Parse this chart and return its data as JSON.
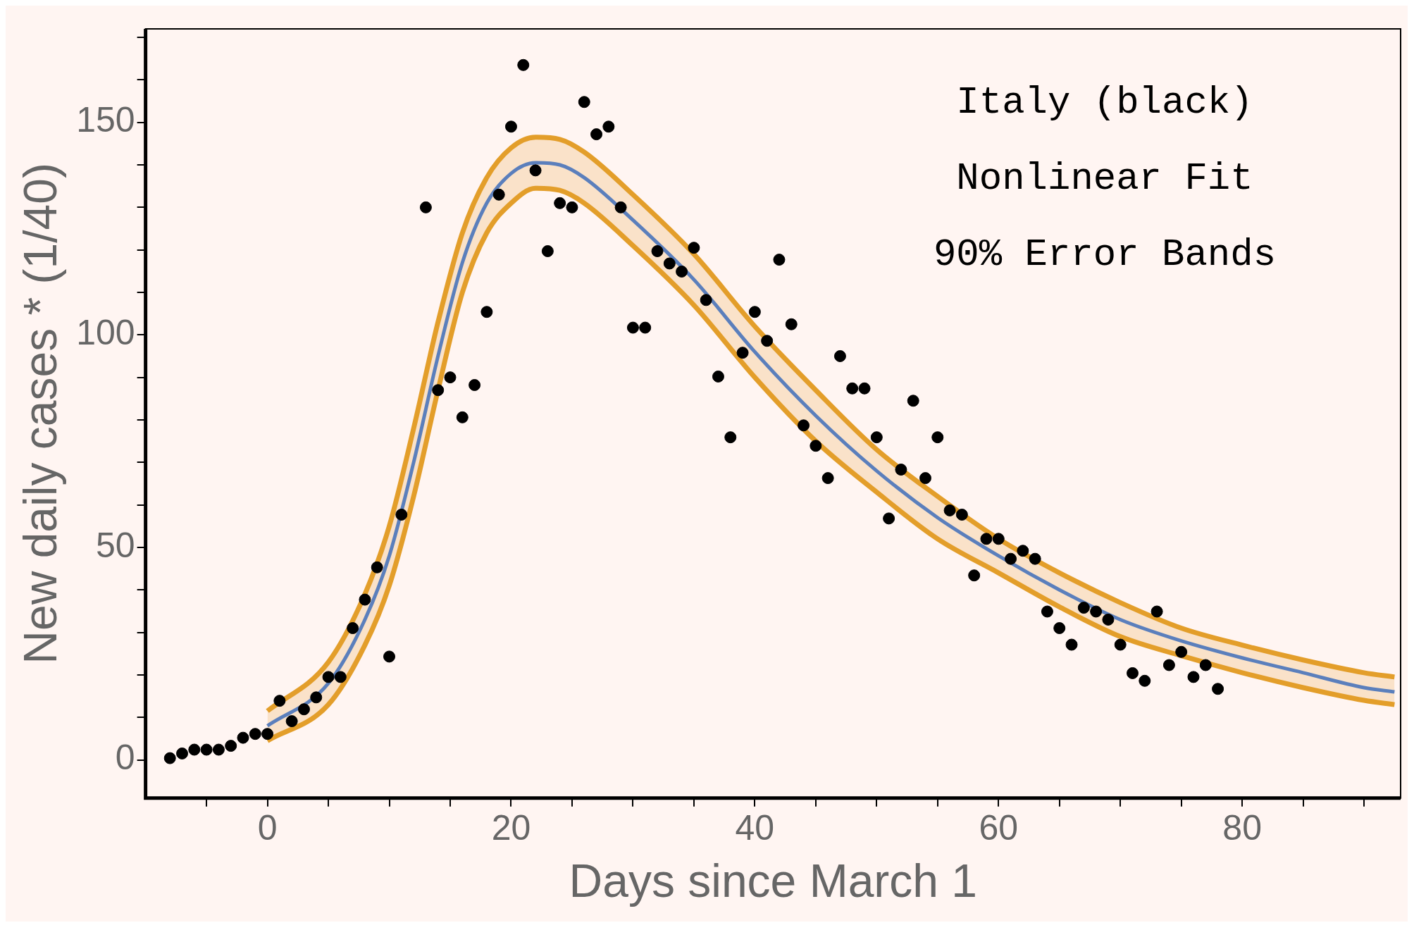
{
  "chart_data": {
    "type": "scatter",
    "xlabel": "Days since March 1",
    "ylabel": "New daily cases * (1/40)",
    "annotations": [
      "Italy (black)",
      "Nonlinear Fit",
      "90% Error Bands"
    ],
    "xlim": [
      -10,
      93
    ],
    "ylim": [
      -9,
      172
    ],
    "xticks": [
      {
        "value": -5,
        "label": null
      },
      0,
      {
        "value": 5,
        "label": null
      },
      {
        "value": 10,
        "label": null
      },
      {
        "value": 15,
        "label": null
      },
      20,
      {
        "value": 25,
        "label": null
      },
      {
        "value": 30,
        "label": null
      },
      {
        "value": 35,
        "label": null
      },
      40,
      {
        "value": 45,
        "label": null
      },
      {
        "value": 50,
        "label": null
      },
      {
        "value": 55,
        "label": null
      },
      60,
      {
        "value": 65,
        "label": null
      },
      {
        "value": 70,
        "label": null
      },
      {
        "value": 75,
        "label": null
      },
      80,
      {
        "value": 85,
        "label": null
      },
      {
        "value": 90,
        "label": null
      }
    ],
    "yticks": [
      0,
      {
        "value": 10,
        "label": null
      },
      {
        "value": 20,
        "label": null
      },
      {
        "value": 30,
        "label": null
      },
      {
        "value": 40,
        "label": null
      },
      50,
      {
        "value": 60,
        "label": null
      },
      {
        "value": 70,
        "label": null
      },
      {
        "value": 80,
        "label": null
      },
      {
        "value": 90,
        "label": null
      },
      100,
      {
        "value": 110,
        "label": null
      },
      {
        "value": 120,
        "label": null
      },
      {
        "value": 130,
        "label": null
      },
      {
        "value": 140,
        "label": null
      },
      150,
      {
        "value": 160,
        "label": null
      },
      {
        "value": 170,
        "label": null
      }
    ],
    "grid": false,
    "legend": false,
    "series": [
      {
        "type": "scatter",
        "color": "#000000",
        "marker": "circle",
        "x": [
          -8,
          -7,
          -6,
          -5,
          -4,
          -3,
          -2,
          -1,
          0,
          1,
          2,
          3,
          4,
          5,
          6,
          7,
          8,
          9,
          10,
          11,
          13,
          14,
          15,
          16,
          17,
          18,
          19,
          20,
          21,
          22,
          23,
          24,
          25,
          26,
          27,
          28,
          29,
          30,
          31,
          32,
          33,
          34,
          35,
          36,
          37,
          38,
          39,
          40,
          41,
          42,
          43,
          44,
          45,
          46,
          47,
          48,
          49,
          50,
          51,
          52,
          53,
          54,
          55,
          56,
          57,
          58,
          59,
          60,
          61,
          62,
          63,
          64,
          65,
          66,
          67,
          68,
          69,
          70,
          71,
          72,
          73,
          74,
          75,
          76,
          77,
          78
        ],
        "values": [
          0.4,
          1.5,
          2.4,
          2.4,
          2.4,
          3.3,
          5.2,
          6.1,
          6.1,
          13.9,
          9.1,
          11.9,
          14.7,
          19.5,
          19.5,
          31,
          37.7,
          45.3,
          24.3,
          57.7,
          130,
          87,
          90,
          80.6,
          88.2,
          105.4,
          133,
          149,
          163.5,
          138.7,
          119.7,
          131,
          130,
          154.8,
          147.2,
          149,
          130,
          101.7,
          101.7,
          119.7,
          116.8,
          114.9,
          120.5,
          108.2,
          90.2,
          75.9,
          95.8,
          105.4,
          98.6,
          117.7,
          102.5,
          78.7,
          73.9,
          66.3,
          95,
          87.4,
          87.4,
          75.9,
          56.8,
          68.3,
          84.5,
          66.3,
          75.9,
          58.7,
          57.7,
          43.4,
          52,
          52,
          47.3,
          49.2,
          47.3,
          34.9,
          31,
          27.1,
          35.8,
          34.9,
          33,
          27.1,
          20.4,
          18.6,
          34.9,
          22.3,
          25.4,
          19.5,
          22.3,
          16.7
        ]
      },
      {
        "type": "line",
        "color": "#e39e2a",
        "marker": "none",
        "x": [
          0,
          5,
          8,
          10,
          12,
          14,
          16,
          18,
          20,
          22,
          24,
          26,
          30,
          35,
          40,
          45,
          50,
          55,
          60,
          65,
          70,
          75,
          80,
          85,
          90,
          92.5
        ],
        "values": [
          4.5,
          13,
          27,
          41,
          62,
          87,
          110,
          124,
          131,
          134.5,
          134,
          131,
          121,
          107,
          90,
          75,
          63,
          52,
          44,
          36,
          29,
          24.5,
          20.5,
          17,
          14,
          13
        ]
      },
      {
        "type": "line",
        "color": "#e39e2a",
        "marker": "none",
        "x": [
          0,
          5,
          8,
          10,
          12,
          14,
          16,
          18,
          20,
          22,
          24,
          26,
          30,
          35,
          40,
          45,
          50,
          55,
          60,
          65,
          70,
          75,
          80,
          85,
          90,
          92.5
        ],
        "values": [
          11.5,
          23,
          39,
          55,
          78,
          103,
          124,
          137,
          144,
          146.5,
          146,
          143,
          133,
          119,
          102,
          87,
          73,
          62,
          52,
          44,
          37,
          31,
          27,
          23.5,
          20.5,
          19.5
        ]
      },
      {
        "type": "line",
        "color": "#5b7fbc",
        "marker": "none",
        "x": [
          0,
          5,
          8,
          10,
          12,
          14,
          16,
          18,
          20,
          22,
          24,
          26,
          30,
          35,
          40,
          45,
          50,
          55,
          60,
          65,
          70,
          75,
          80,
          85,
          90,
          92.5
        ],
        "values": [
          8,
          18,
          33,
          48,
          70,
          95,
          117,
          131,
          138,
          140.5,
          140,
          137,
          127,
          113,
          96,
          81,
          68,
          57,
          48,
          40,
          33,
          28,
          24,
          20.5,
          17,
          16
        ],
        "lower": [
          4.5,
          13,
          27,
          41,
          62,
          87,
          110,
          124,
          131,
          134.5,
          134,
          131,
          121,
          107,
          90,
          75,
          63,
          52,
          44,
          36,
          29,
          24.5,
          20.5,
          17,
          14,
          13
        ],
        "upper": [
          11.5,
          23,
          39,
          55,
          78,
          103,
          124,
          137,
          144,
          146.5,
          146,
          143,
          133,
          119,
          102,
          87,
          73,
          62,
          52,
          44,
          37,
          31,
          27,
          23.5,
          20.5,
          19.5
        ]
      }
    ]
  }
}
